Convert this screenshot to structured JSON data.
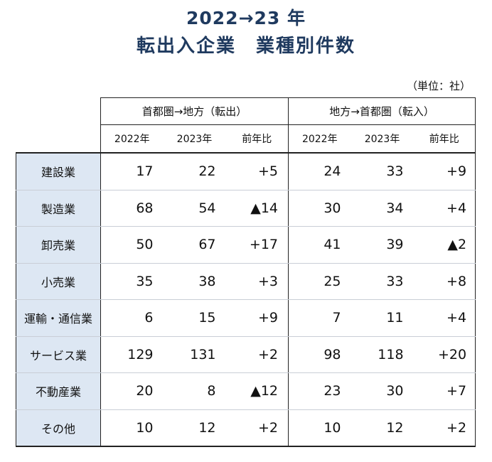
{
  "title_line1": "2022→23 年",
  "title_line2": "転出入企業　業種別件数",
  "unit": "（単位：社）",
  "headers": {
    "group_out": "首都圏→地方（転出）",
    "group_in": "地方→首都圏（転入）",
    "y2022": "2022年",
    "y2023": "2023年",
    "change": "前年比"
  },
  "rows": [
    {
      "label": "建設業",
      "out_2022": "17",
      "out_2023": "22",
      "out_diff": "+5",
      "in_2022": "24",
      "in_2023": "33",
      "in_diff": "+9"
    },
    {
      "label": "製造業",
      "out_2022": "68",
      "out_2023": "54",
      "out_diff": "▲14",
      "in_2022": "30",
      "in_2023": "34",
      "in_diff": "+4"
    },
    {
      "label": "卸売業",
      "out_2022": "50",
      "out_2023": "67",
      "out_diff": "+17",
      "in_2022": "41",
      "in_2023": "39",
      "in_diff": "▲2"
    },
    {
      "label": "小売業",
      "out_2022": "35",
      "out_2023": "38",
      "out_diff": "+3",
      "in_2022": "25",
      "in_2023": "33",
      "in_diff": "+8"
    },
    {
      "label": "運輸・通信業",
      "out_2022": "6",
      "out_2023": "15",
      "out_diff": "+9",
      "in_2022": "7",
      "in_2023": "11",
      "in_diff": "+4"
    },
    {
      "label": "サービス業",
      "out_2022": "129",
      "out_2023": "131",
      "out_diff": "+2",
      "in_2022": "98",
      "in_2023": "118",
      "in_diff": "+20"
    },
    {
      "label": "不動産業",
      "out_2022": "20",
      "out_2023": "8",
      "out_diff": "▲12",
      "in_2022": "23",
      "in_2023": "30",
      "in_diff": "+7"
    },
    {
      "label": "その他",
      "out_2022": "10",
      "out_2023": "12",
      "out_diff": "+2",
      "in_2022": "10",
      "in_2023": "12",
      "in_diff": "+2"
    }
  ]
}
